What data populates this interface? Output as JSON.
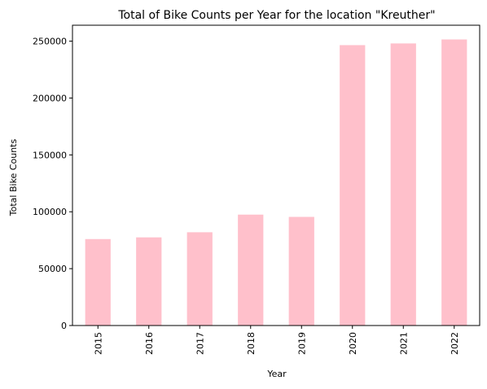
{
  "chart_data": {
    "type": "bar",
    "title": "Total of Bike Counts per Year for the location \"Kreuther\"",
    "xlabel": "Year",
    "ylabel": "Total Bike Counts",
    "categories": [
      "2015",
      "2016",
      "2017",
      "2018",
      "2019",
      "2020",
      "2021",
      "2022"
    ],
    "values": [
      76000,
      77500,
      82000,
      97500,
      95500,
      246500,
      248000,
      251500
    ],
    "ylim": [
      0,
      264000
    ],
    "yticks": [
      0,
      50000,
      100000,
      150000,
      200000,
      250000
    ],
    "bar_color": "#ffc0cb",
    "grid": false,
    "legend": "none"
  }
}
